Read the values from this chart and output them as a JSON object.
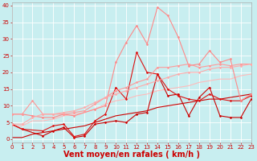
{
  "xlabel": "Vent moyen/en rafales ( km/h )",
  "xlim": [
    0,
    23
  ],
  "ylim": [
    -1,
    41
  ],
  "yticks": [
    0,
    5,
    10,
    15,
    20,
    25,
    30,
    35,
    40
  ],
  "xticks": [
    0,
    1,
    2,
    3,
    4,
    5,
    6,
    7,
    8,
    9,
    10,
    11,
    12,
    13,
    14,
    15,
    16,
    17,
    18,
    19,
    20,
    21,
    22,
    23
  ],
  "bg_color": "#c8eef0",
  "grid_color": "#b0dde0",
  "series": [
    {
      "x": [
        0,
        1,
        3,
        4,
        5,
        6,
        7,
        8,
        9,
        10,
        11,
        12,
        13,
        14,
        15,
        16,
        17,
        18,
        19,
        20,
        21,
        22,
        23
      ],
      "y": [
        4.5,
        3.0,
        1.0,
        2.5,
        3.5,
        0.5,
        1.0,
        4.5,
        5.0,
        5.5,
        5.0,
        7.5,
        8.0,
        19.5,
        13.0,
        13.5,
        7.0,
        12.5,
        15.5,
        7.0,
        6.5,
        6.5,
        12.0
      ],
      "color": "#cc0000",
      "linewidth": 0.8,
      "marker": "D",
      "markersize": 1.5
    },
    {
      "x": [
        0,
        1,
        3,
        4,
        5,
        6,
        7,
        8,
        9,
        10,
        11,
        12,
        13,
        14,
        15,
        16,
        17,
        18,
        19,
        20,
        21,
        22,
        23
      ],
      "y": [
        4.5,
        3.0,
        2.5,
        4.0,
        4.5,
        0.8,
        1.5,
        5.5,
        7.5,
        15.5,
        12.0,
        26.0,
        20.0,
        19.5,
        15.0,
        13.0,
        12.0,
        11.5,
        13.5,
        12.0,
        11.5,
        11.5,
        13.0
      ],
      "color": "#dd1111",
      "linewidth": 0.8,
      "marker": "D",
      "markersize": 1.5
    },
    {
      "x": [
        0,
        1,
        2,
        3,
        4,
        5,
        6,
        8,
        9,
        10,
        11,
        12,
        13,
        14,
        15,
        16,
        17,
        18,
        19,
        20,
        21,
        22,
        23
      ],
      "y": [
        7.5,
        7.5,
        7.0,
        6.5,
        6.5,
        7.5,
        7.0,
        9.0,
        10.0,
        23.0,
        29.0,
        34.0,
        28.5,
        39.5,
        37.0,
        30.5,
        22.0,
        22.5,
        26.5,
        23.0,
        24.0,
        11.5,
        13.5
      ],
      "color": "#ff8888",
      "linewidth": 0.8,
      "marker": "D",
      "markersize": 1.5
    },
    {
      "x": [
        0,
        1,
        2,
        3,
        4,
        5,
        6,
        7,
        8,
        9,
        10,
        11,
        12,
        13,
        14,
        15,
        16,
        17,
        18,
        19,
        20,
        21,
        22,
        23
      ],
      "y": [
        7.5,
        7.5,
        11.5,
        7.5,
        7.5,
        7.5,
        8.0,
        8.5,
        10.5,
        12.5,
        14.5,
        15.5,
        17.0,
        18.0,
        21.5,
        21.5,
        22.0,
        22.5,
        21.5,
        22.0,
        22.5,
        22.0,
        22.5,
        22.5
      ],
      "color": "#ff9999",
      "linewidth": 0.8,
      "marker": "D",
      "markersize": 1.5
    },
    {
      "x": [
        0,
        1,
        2,
        3,
        4,
        5,
        6,
        7,
        8,
        9,
        10,
        11,
        12,
        13,
        14,
        15,
        16,
        17,
        18,
        19,
        20,
        21,
        22,
        23
      ],
      "y": [
        4.5,
        4.5,
        6.5,
        7.5,
        7.5,
        8.0,
        8.5,
        9.5,
        11.0,
        12.5,
        13.5,
        14.5,
        15.5,
        16.5,
        17.5,
        18.5,
        19.5,
        20.0,
        20.0,
        21.0,
        21.5,
        21.5,
        22.0,
        22.5
      ],
      "color": "#ffaaaa",
      "linewidth": 0.8,
      "marker": "D",
      "markersize": 1.5
    },
    {
      "x": [
        0,
        1,
        2,
        3,
        4,
        5,
        6,
        7,
        8,
        9,
        10,
        11,
        12,
        13,
        14,
        15,
        16,
        17,
        18,
        19,
        20,
        21,
        22,
        23
      ],
      "y": [
        4.0,
        4.0,
        5.5,
        5.5,
        6.0,
        7.0,
        7.5,
        8.0,
        9.0,
        10.5,
        11.5,
        12.0,
        13.0,
        13.5,
        14.5,
        15.0,
        15.5,
        16.0,
        17.0,
        17.5,
        18.0,
        18.0,
        19.0,
        19.5
      ],
      "color": "#ffbbbb",
      "linewidth": 0.8,
      "marker": null,
      "markersize": 0
    },
    {
      "x": [
        0,
        1,
        2,
        3,
        4,
        5,
        6,
        7,
        8,
        9,
        10,
        11,
        12,
        13,
        14,
        15,
        16,
        17,
        18,
        19,
        20,
        21,
        22,
        23
      ],
      "y": [
        0.5,
        0.5,
        1.5,
        2.0,
        2.5,
        3.0,
        3.5,
        4.0,
        5.0,
        6.0,
        7.0,
        7.5,
        8.0,
        8.5,
        9.5,
        10.0,
        10.5,
        11.0,
        11.5,
        12.0,
        12.0,
        12.5,
        13.0,
        13.5
      ],
      "color": "#cc0000",
      "linewidth": 0.8,
      "marker": null,
      "markersize": 0
    }
  ],
  "xlabel_color": "#cc0000",
  "xlabel_fontsize": 7,
  "tick_color": "#cc0000",
  "tick_fontsize": 5,
  "ytick_fontsize": 5
}
